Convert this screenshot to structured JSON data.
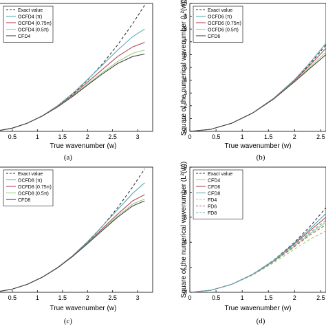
{
  "chart_data": [
    {
      "type": "line",
      "panel_label": "(a)",
      "xlabel": "True wavenumber (w)",
      "ylabel": "",
      "xlim": [
        0.2,
        3.3
      ],
      "ylim": [
        0,
        10
      ],
      "xticks": [
        "0.5",
        "1",
        "1.5",
        "2",
        "2.5",
        "3"
      ],
      "yticks": [],
      "legend": "top-left",
      "series": [
        {
          "name": "Exact value",
          "color": "#333333",
          "dashed": true,
          "x": [
            0.2,
            0.5,
            0.8,
            1.1,
            1.4,
            1.7,
            2.0,
            2.3,
            2.6,
            2.9,
            3.14
          ],
          "y": [
            0.04,
            0.25,
            0.64,
            1.21,
            1.96,
            2.89,
            4.0,
            5.29,
            6.76,
            8.41,
            9.86
          ]
        },
        {
          "name": "OCFD4 (π)",
          "color": "#5aa9b5",
          "x": [
            0.2,
            0.5,
            0.8,
            1.1,
            1.4,
            1.7,
            2.0,
            2.3,
            2.6,
            2.9,
            3.14
          ],
          "y": [
            0.04,
            0.25,
            0.64,
            1.22,
            2.0,
            2.95,
            4.05,
            5.2,
            6.35,
            7.4,
            8.0
          ]
        },
        {
          "name": "OCFD4 (0.75π)",
          "color": "#b5485e",
          "x": [
            0.2,
            0.5,
            0.8,
            1.1,
            1.4,
            1.7,
            2.0,
            2.3,
            2.6,
            2.9,
            3.14
          ],
          "y": [
            0.04,
            0.25,
            0.64,
            1.21,
            1.95,
            2.83,
            3.85,
            4.85,
            5.85,
            6.6,
            6.95
          ]
        },
        {
          "name": "OCFD4 (0.5π)",
          "color": "#9ad07a",
          "x": [
            0.2,
            0.5,
            0.8,
            1.1,
            1.4,
            1.7,
            2.0,
            2.3,
            2.6,
            2.9,
            3.14
          ],
          "y": [
            0.04,
            0.25,
            0.64,
            1.2,
            1.92,
            2.75,
            3.7,
            4.6,
            5.45,
            6.1,
            6.35
          ]
        },
        {
          "name": "CFD4",
          "color": "#444444",
          "x": [
            0.2,
            0.5,
            0.8,
            1.1,
            1.4,
            1.7,
            2.0,
            2.3,
            2.6,
            2.9,
            3.14
          ],
          "y": [
            0.04,
            0.25,
            0.64,
            1.2,
            1.9,
            2.72,
            3.62,
            4.5,
            5.3,
            5.85,
            6.05
          ]
        }
      ]
    },
    {
      "type": "line",
      "panel_label": "(b)",
      "xlabel": "True wavenumber (w)",
      "ylabel": "Square of the numerical wavenumber (L²(w))",
      "xlim": [
        0,
        2.6
      ],
      "ylim": [
        0,
        10
      ],
      "xticks": [
        "0",
        "0.5",
        "1",
        "1.5",
        "2",
        "2.5"
      ],
      "yticks": [
        "0",
        "1",
        "2",
        "3",
        "4",
        "5",
        "6",
        "7",
        "8",
        "9",
        "10"
      ],
      "legend": "top-left",
      "series": [
        {
          "name": "Exact value",
          "color": "#333333",
          "dashed": true,
          "x": [
            0,
            0.4,
            0.8,
            1.2,
            1.6,
            2.0,
            2.3,
            2.6
          ],
          "y": [
            0,
            0.16,
            0.64,
            1.44,
            2.56,
            4.0,
            5.29,
            6.76
          ]
        },
        {
          "name": "OCFD6 (π)",
          "color": "#5aa9b5",
          "x": [
            0,
            0.4,
            0.8,
            1.2,
            1.6,
            2.0,
            2.3,
            2.6
          ],
          "y": [
            0,
            0.16,
            0.64,
            1.44,
            2.58,
            4.05,
            5.4,
            6.9
          ]
        },
        {
          "name": "OCFD6 (0.75π)",
          "color": "#b5485e",
          "x": [
            0,
            0.4,
            0.8,
            1.2,
            1.6,
            2.0,
            2.3,
            2.6
          ],
          "y": [
            0,
            0.16,
            0.64,
            1.44,
            2.56,
            3.98,
            5.2,
            6.5
          ]
        },
        {
          "name": "OCFD6 (0.5π)",
          "color": "#9ad07a",
          "x": [
            0,
            0.4,
            0.8,
            1.2,
            1.6,
            2.0,
            2.3,
            2.6
          ],
          "y": [
            0,
            0.16,
            0.64,
            1.43,
            2.54,
            3.92,
            5.05,
            6.2
          ]
        },
        {
          "name": "CFD6",
          "color": "#444444",
          "x": [
            0,
            0.4,
            0.8,
            1.2,
            1.6,
            2.0,
            2.3,
            2.6
          ],
          "y": [
            0,
            0.16,
            0.64,
            1.43,
            2.52,
            3.88,
            4.95,
            6.0
          ]
        }
      ]
    },
    {
      "type": "line",
      "panel_label": "(c)",
      "xlabel": "True wavenumber (w)",
      "ylabel": "",
      "xlim": [
        0.2,
        3.3
      ],
      "ylim": [
        0,
        10
      ],
      "xticks": [
        "0.5",
        "1",
        "1.5",
        "2",
        "2.5",
        "3"
      ],
      "yticks": [],
      "legend": "top-left",
      "series": [
        {
          "name": "Exact value",
          "color": "#333333",
          "dashed": true,
          "x": [
            0.2,
            0.5,
            0.8,
            1.1,
            1.4,
            1.7,
            2.0,
            2.3,
            2.6,
            2.9,
            3.14
          ],
          "y": [
            0.04,
            0.25,
            0.64,
            1.21,
            1.96,
            2.89,
            4.0,
            5.29,
            6.76,
            8.41,
            9.86
          ]
        },
        {
          "name": "OCFD8 (π)",
          "color": "#5aa9b5",
          "x": [
            0.2,
            0.5,
            0.8,
            1.1,
            1.4,
            1.7,
            2.0,
            2.3,
            2.6,
            2.9,
            3.14
          ],
          "y": [
            0.04,
            0.25,
            0.64,
            1.21,
            1.97,
            2.92,
            4.05,
            5.3,
            6.6,
            7.9,
            8.75
          ]
        },
        {
          "name": "OCFD8 (0.75π)",
          "color": "#b5485e",
          "x": [
            0.2,
            0.5,
            0.8,
            1.1,
            1.4,
            1.7,
            2.0,
            2.3,
            2.6,
            2.9,
            3.14
          ],
          "y": [
            0.04,
            0.25,
            0.64,
            1.21,
            1.96,
            2.88,
            3.95,
            5.1,
            6.25,
            7.3,
            7.8
          ]
        },
        {
          "name": "OCFD8 (0.5π)",
          "color": "#9ad07a",
          "x": [
            0.2,
            0.5,
            0.8,
            1.1,
            1.4,
            1.7,
            2.0,
            2.3,
            2.6,
            2.9,
            3.14
          ],
          "y": [
            0.04,
            0.25,
            0.64,
            1.21,
            1.95,
            2.86,
            3.9,
            5.0,
            6.1,
            7.05,
            7.45
          ]
        },
        {
          "name": "CFD8",
          "color": "#444444",
          "x": [
            0.2,
            0.5,
            0.8,
            1.1,
            1.4,
            1.7,
            2.0,
            2.3,
            2.6,
            2.9,
            3.14
          ],
          "y": [
            0.04,
            0.25,
            0.64,
            1.21,
            1.95,
            2.85,
            3.88,
            4.95,
            6.0,
            6.9,
            7.3
          ]
        }
      ]
    },
    {
      "type": "line",
      "panel_label": "(d)",
      "xlabel": "True wavenumber (w)",
      "ylabel": "Square of the numerical wavenumber (L²(w))",
      "xlim": [
        0,
        2.6
      ],
      "ylim": [
        0,
        10
      ],
      "xticks": [
        "0",
        "0.5",
        "1",
        "1.5",
        "2",
        "2.5"
      ],
      "yticks": [
        "0",
        "2",
        "4",
        "6",
        "8",
        "10"
      ],
      "legend": "top-left",
      "series": [
        {
          "name": "Exact value",
          "color": "#333333",
          "dashed": true,
          "x": [
            0,
            0.4,
            0.8,
            1.2,
            1.6,
            2.0,
            2.3,
            2.6
          ],
          "y": [
            0,
            0.16,
            0.64,
            1.44,
            2.56,
            4.0,
            5.29,
            6.76
          ]
        },
        {
          "name": "CFD4",
          "color": "#9ad07a",
          "x": [
            0,
            0.4,
            0.8,
            1.2,
            1.6,
            2.0,
            2.3,
            2.6
          ],
          "y": [
            0,
            0.16,
            0.64,
            1.42,
            2.46,
            3.7,
            4.7,
            5.6
          ]
        },
        {
          "name": "CFD6",
          "color": "#b5485e",
          "x": [
            0,
            0.4,
            0.8,
            1.2,
            1.6,
            2.0,
            2.3,
            2.6
          ],
          "y": [
            0,
            0.16,
            0.64,
            1.43,
            2.52,
            3.88,
            4.95,
            6.0
          ]
        },
        {
          "name": "CFD8",
          "color": "#5aa9b5",
          "x": [
            0,
            0.4,
            0.8,
            1.2,
            1.6,
            2.0,
            2.3,
            2.6
          ],
          "y": [
            0,
            0.16,
            0.64,
            1.44,
            2.54,
            3.94,
            5.1,
            6.3
          ]
        },
        {
          "name": "FD4",
          "color": "#9ad07a",
          "dashed": true,
          "x": [
            0,
            0.4,
            0.8,
            1.2,
            1.6,
            2.0,
            2.3,
            2.6
          ],
          "y": [
            0,
            0.16,
            0.63,
            1.38,
            2.35,
            3.45,
            4.25,
            4.9
          ]
        },
        {
          "name": "FD6",
          "color": "#b5485e",
          "dashed": true,
          "x": [
            0,
            0.4,
            0.8,
            1.2,
            1.6,
            2.0,
            2.3,
            2.6
          ],
          "y": [
            0,
            0.16,
            0.64,
            1.41,
            2.45,
            3.65,
            4.6,
            5.4
          ]
        },
        {
          "name": "FD8",
          "color": "#5aa9b5",
          "dashed": true,
          "x": [
            0,
            0.4,
            0.8,
            1.2,
            1.6,
            2.0,
            2.3,
            2.6
          ],
          "y": [
            0,
            0.16,
            0.64,
            1.42,
            2.5,
            3.78,
            4.8,
            5.75
          ]
        }
      ]
    }
  ]
}
